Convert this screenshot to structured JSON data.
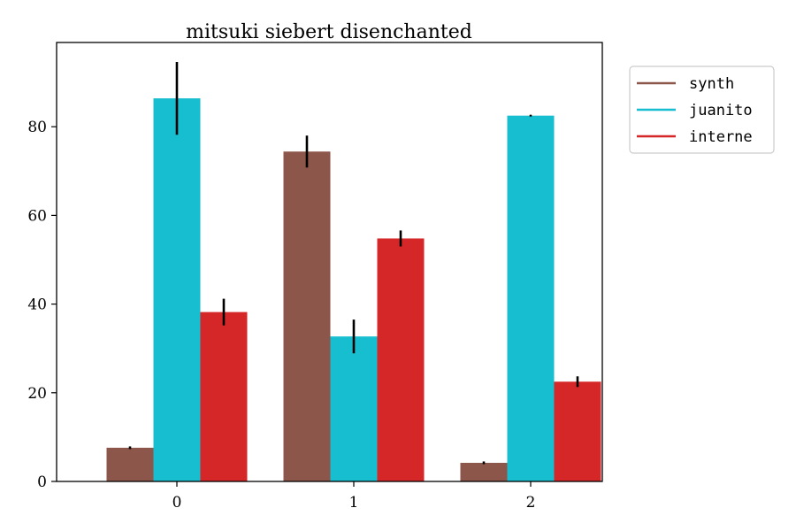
{
  "chart_data": {
    "type": "bar",
    "title": "mitsuki siebert disenchanted",
    "xlabel": "",
    "ylabel": "",
    "categories": [
      "0",
      "1",
      "2"
    ],
    "ylim": [
      0,
      99
    ],
    "yticks": [
      0,
      20,
      40,
      60,
      80
    ],
    "grid": false,
    "legend_placement": "outside-top-right",
    "series": [
      {
        "name": "synth",
        "color": "#8c564b",
        "values": [
          7.6,
          74.4,
          4.2
        ],
        "errors": [
          0.3,
          3.6,
          0.3
        ]
      },
      {
        "name": "juanito",
        "color": "#17becf",
        "values": [
          86.4,
          32.7,
          82.5
        ],
        "errors": [
          8.2,
          3.8,
          0.2
        ]
      },
      {
        "name": "interne",
        "color": "#d62728",
        "values": [
          38.2,
          54.8,
          22.5
        ],
        "errors": [
          3.0,
          1.8,
          1.2
        ]
      }
    ]
  }
}
